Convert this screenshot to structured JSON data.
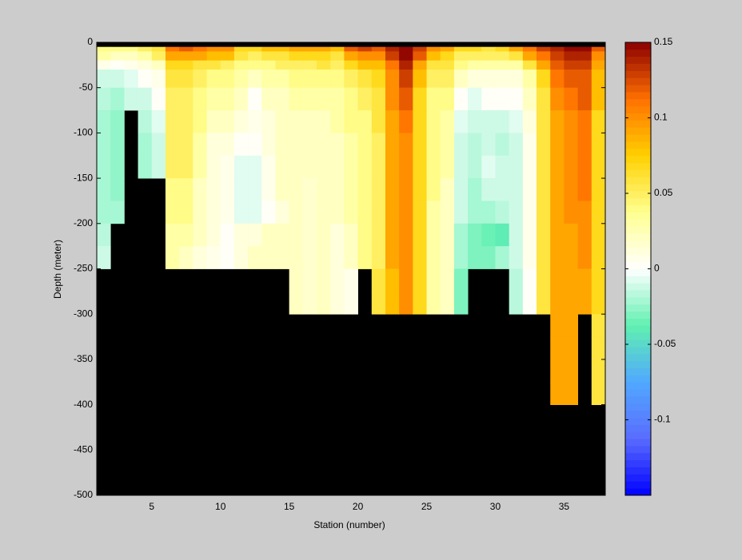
{
  "chart_data": {
    "type": "heatmap",
    "xlabel": "Station (number)",
    "ylabel": "Depth (meter)",
    "xlim": [
      1,
      38
    ],
    "ylim": [
      -500,
      0
    ],
    "xticks": [
      5,
      10,
      15,
      20,
      25,
      30,
      35
    ],
    "yticks": [
      0,
      -50,
      -100,
      -150,
      -200,
      -250,
      -300,
      -350,
      -400,
      -450,
      -500
    ],
    "clim": [
      -0.15,
      0.15
    ],
    "cticks": [
      -0.1,
      -0.05,
      0,
      0.05,
      0.1,
      0.15
    ],
    "colormap": [
      "#0000ff",
      "#5a6cff",
      "#50a8ff",
      "#60f0b0",
      "#ffffff",
      "#ffff90",
      "#ffd000",
      "#ff7000",
      "#8b0000"
    ],
    "missing_color": "#000000",
    "x_edges": [
      1,
      2,
      3,
      4,
      5,
      6,
      7,
      8,
      9,
      10,
      11,
      12,
      13,
      14,
      15,
      16,
      17,
      18,
      19,
      20,
      21,
      22,
      23,
      24,
      25,
      26,
      27,
      28,
      29,
      30,
      31,
      32,
      33,
      34,
      35,
      36,
      37,
      38
    ],
    "y_edges": [
      -5,
      -10,
      -20,
      -30,
      -50,
      -75,
      -100,
      -125,
      -150,
      -175,
      -200,
      -225,
      -250,
      -275,
      -300,
      -325,
      -350,
      -375,
      -400
    ],
    "z": [
      [
        0.04,
        0.03,
        0.005,
        -0.01,
        -0.015,
        -0.02,
        -0.02,
        -0.02,
        -0.02,
        -0.02,
        -0.015,
        -0.01,
        null,
        null,
        null,
        null,
        null,
        null
      ],
      [
        0.04,
        0.02,
        0.0,
        -0.01,
        -0.02,
        -0.025,
        -0.025,
        -0.025,
        -0.025,
        -0.02,
        null,
        null,
        null,
        null,
        null,
        null,
        null,
        null
      ],
      [
        0.04,
        0.02,
        0.005,
        -0.005,
        -0.01,
        null,
        null,
        null,
        null,
        null,
        null,
        null,
        null,
        null,
        null,
        null,
        null,
        null
      ],
      [
        0.05,
        0.03,
        0.01,
        0.0,
        -0.01,
        -0.015,
        -0.02,
        -0.02,
        null,
        null,
        null,
        null,
        null,
        null,
        null,
        null,
        null,
        null
      ],
      [
        0.06,
        0.05,
        0.02,
        0.005,
        0.0,
        -0.005,
        -0.01,
        -0.01,
        null,
        null,
        null,
        null,
        null,
        null,
        null,
        null,
        null,
        null
      ],
      [
        0.11,
        0.09,
        0.07,
        0.06,
        0.05,
        0.05,
        0.05,
        0.05,
        0.04,
        0.04,
        0.03,
        0.03,
        null,
        null,
        null,
        null,
        null,
        null
      ],
      [
        0.12,
        0.09,
        0.07,
        0.06,
        0.05,
        0.05,
        0.05,
        0.05,
        0.04,
        0.04,
        0.03,
        0.02,
        null,
        null,
        null,
        null,
        null,
        null
      ],
      [
        0.11,
        0.09,
        0.06,
        0.05,
        0.04,
        0.04,
        0.03,
        0.03,
        0.02,
        0.02,
        0.02,
        0.01,
        null,
        null,
        null,
        null,
        null,
        null
      ],
      [
        0.1,
        0.08,
        0.06,
        0.04,
        0.03,
        0.02,
        0.01,
        0.01,
        0.01,
        0.01,
        0.01,
        0.005,
        null,
        null,
        null,
        null,
        null,
        null
      ],
      [
        0.1,
        0.08,
        0.05,
        0.04,
        0.03,
        0.02,
        0.01,
        0.005,
        0.005,
        0.005,
        0.0,
        0.0,
        null,
        null,
        null,
        null,
        null,
        null
      ],
      [
        0.07,
        0.06,
        0.04,
        0.03,
        0.02,
        0.01,
        0.0,
        -0.005,
        -0.005,
        -0.005,
        0.01,
        0.01,
        null,
        null,
        null,
        null,
        null,
        null
      ],
      [
        0.07,
        0.05,
        0.04,
        0.02,
        0.0,
        0.005,
        0.0,
        -0.005,
        -0.005,
        -0.005,
        0.01,
        0.02,
        null,
        null,
        null,
        null,
        null,
        null
      ],
      [
        0.08,
        0.06,
        0.04,
        0.03,
        0.02,
        0.01,
        0.01,
        0.005,
        0.005,
        0.0,
        0.02,
        0.02,
        null,
        null,
        null,
        null,
        null,
        null
      ],
      [
        0.08,
        0.06,
        0.05,
        0.03,
        0.02,
        0.02,
        0.02,
        0.02,
        0.02,
        0.01,
        0.02,
        0.02,
        null,
        null,
        null,
        null,
        null,
        null
      ],
      [
        0.09,
        0.07,
        0.05,
        0.04,
        0.03,
        0.02,
        0.02,
        0.02,
        0.02,
        0.02,
        0.02,
        0.02,
        0.02,
        0.02,
        null,
        null,
        null,
        null
      ],
      [
        0.09,
        0.07,
        0.05,
        0.04,
        0.03,
        0.02,
        0.02,
        0.02,
        0.015,
        0.015,
        0.015,
        0.015,
        0.015,
        0.015,
        null,
        null,
        null,
        null
      ],
      [
        0.09,
        0.07,
        0.06,
        0.04,
        0.03,
        0.02,
        0.02,
        0.02,
        0.02,
        0.02,
        0.02,
        0.02,
        0.02,
        0.02,
        null,
        null,
        null,
        null
      ],
      [
        0.08,
        0.06,
        0.05,
        0.04,
        0.03,
        0.03,
        0.02,
        0.02,
        0.02,
        0.02,
        0.01,
        0.01,
        0.01,
        0.01,
        null,
        null,
        null,
        null
      ],
      [
        0.12,
        0.09,
        0.07,
        0.05,
        0.04,
        0.04,
        0.03,
        0.03,
        0.03,
        0.03,
        0.02,
        0.02,
        0.005,
        0.005,
        null,
        null,
        null,
        null
      ],
      [
        0.13,
        0.1,
        0.08,
        0.06,
        0.05,
        0.04,
        0.04,
        0.04,
        0.04,
        0.04,
        0.04,
        0.04,
        null,
        null,
        null,
        null,
        null,
        null
      ],
      [
        0.12,
        0.1,
        0.08,
        0.07,
        0.06,
        0.06,
        0.05,
        0.05,
        0.05,
        0.05,
        0.05,
        0.05,
        0.06,
        0.06,
        null,
        null,
        null,
        null
      ],
      [
        0.14,
        0.13,
        0.11,
        0.1,
        0.1,
        0.09,
        0.09,
        0.09,
        0.09,
        0.09,
        0.09,
        0.09,
        0.08,
        0.08,
        null,
        null,
        null,
        null
      ],
      [
        0.15,
        0.15,
        0.14,
        0.13,
        0.12,
        0.11,
        0.1,
        0.1,
        0.1,
        0.1,
        0.1,
        0.1,
        0.1,
        0.1,
        null,
        null,
        null,
        null
      ],
      [
        0.13,
        0.12,
        0.09,
        0.08,
        0.07,
        0.07,
        0.07,
        0.07,
        0.07,
        0.07,
        0.07,
        0.07,
        0.07,
        0.07,
        null,
        null,
        null,
        null
      ],
      [
        0.1,
        0.08,
        0.06,
        0.05,
        0.04,
        0.04,
        0.04,
        0.04,
        0.04,
        0.03,
        0.03,
        0.03,
        0.03,
        0.03,
        null,
        null,
        null,
        null
      ],
      [
        0.09,
        0.07,
        0.06,
        0.05,
        0.04,
        0.03,
        0.03,
        0.03,
        0.02,
        0.02,
        0.02,
        0.02,
        0.02,
        0.02,
        null,
        null,
        null,
        null
      ],
      [
        0.07,
        0.05,
        0.04,
        0.02,
        0.0,
        -0.005,
        -0.01,
        -0.01,
        -0.01,
        -0.01,
        -0.02,
        -0.02,
        -0.03,
        -0.03,
        null,
        null,
        null,
        null
      ],
      [
        0.07,
        0.05,
        0.03,
        0.01,
        -0.005,
        -0.01,
        -0.015,
        -0.015,
        -0.02,
        -0.02,
        -0.03,
        -0.03,
        null,
        null,
        null,
        null,
        null,
        null
      ],
      [
        0.06,
        0.05,
        0.03,
        0.01,
        0.0,
        -0.01,
        -0.01,
        -0.005,
        -0.01,
        -0.02,
        -0.035,
        -0.03,
        null,
        null,
        null,
        null,
        null,
        null
      ],
      [
        0.07,
        0.05,
        0.03,
        0.01,
        0.0,
        -0.01,
        -0.015,
        -0.01,
        -0.01,
        -0.015,
        -0.04,
        -0.02,
        null,
        null,
        null,
        null,
        null,
        null
      ],
      [
        0.09,
        0.06,
        0.03,
        0.01,
        0.0,
        -0.005,
        -0.01,
        -0.01,
        -0.01,
        -0.01,
        -0.01,
        -0.01,
        -0.015,
        -0.015,
        null,
        null,
        null,
        null
      ],
      [
        0.11,
        0.09,
        0.06,
        0.03,
        0.02,
        0.01,
        0.005,
        0.005,
        0.005,
        0.005,
        0.005,
        0.005,
        0.0,
        0.0,
        null,
        null,
        null,
        null
      ],
      [
        0.13,
        0.11,
        0.09,
        0.07,
        0.06,
        0.06,
        0.06,
        0.06,
        0.06,
        0.06,
        0.06,
        0.06,
        0.06,
        0.06,
        null,
        null,
        null,
        null
      ],
      [
        0.14,
        0.13,
        0.12,
        0.11,
        0.1,
        0.09,
        0.09,
        0.09,
        0.09,
        0.09,
        0.09,
        0.09,
        0.09,
        0.09,
        0.09,
        0.09,
        0.09,
        0.09
      ],
      [
        0.15,
        0.14,
        0.13,
        0.12,
        0.11,
        0.1,
        0.1,
        0.1,
        0.1,
        0.1,
        0.09,
        0.09,
        0.09,
        0.09,
        0.09,
        0.09,
        0.09,
        0.09
      ],
      [
        0.15,
        0.14,
        0.13,
        0.12,
        0.12,
        0.11,
        0.11,
        0.11,
        0.11,
        0.1,
        0.1,
        0.1,
        0.09,
        0.09,
        null,
        null,
        null,
        null
      ],
      [
        0.12,
        0.1,
        0.09,
        0.08,
        0.08,
        0.07,
        0.07,
        0.07,
        0.07,
        0.07,
        0.07,
        0.07,
        0.07,
        0.07,
        0.06,
        0.06,
        0.06,
        0.06
      ]
    ]
  }
}
